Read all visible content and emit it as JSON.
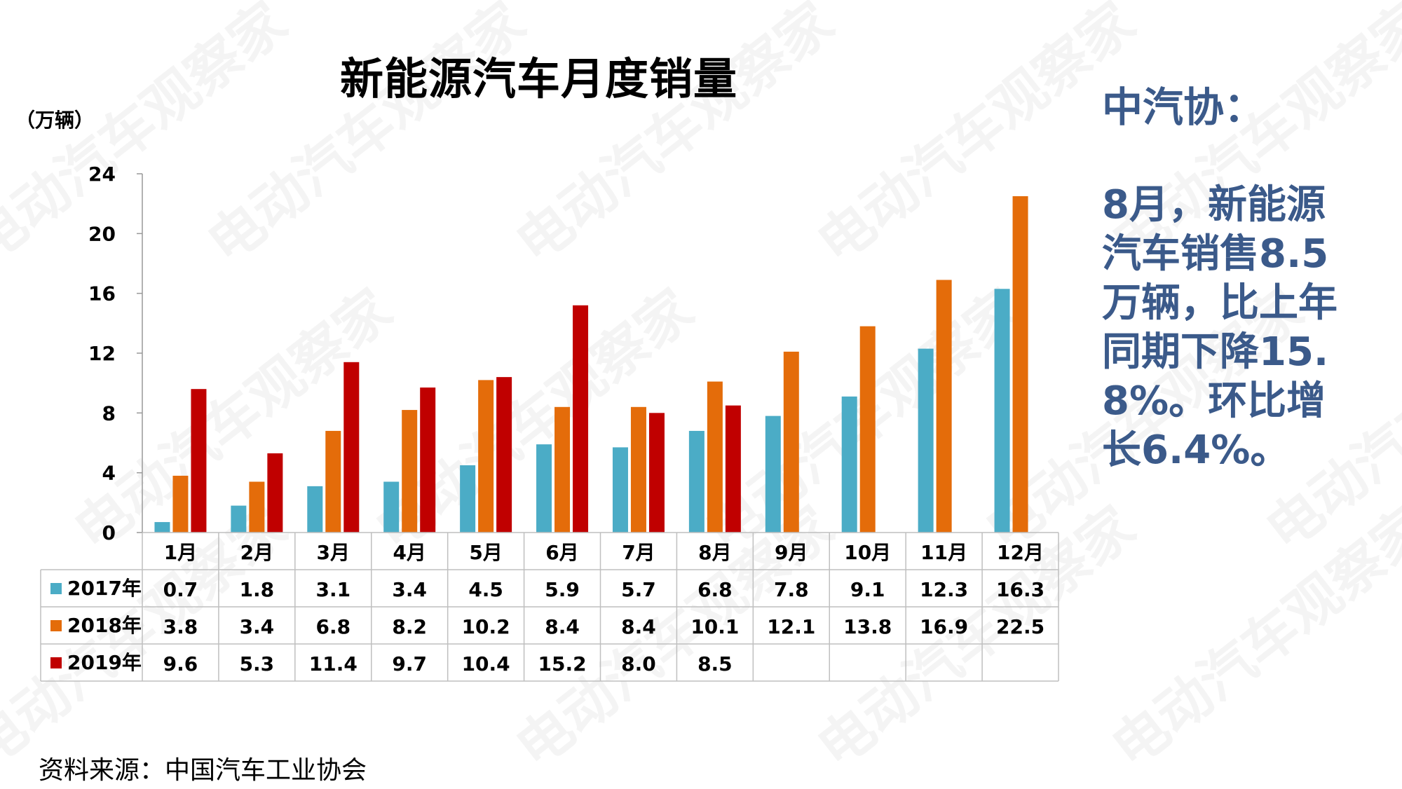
{
  "title": "新能源汽车月度销量",
  "unit_label": "（万辆）",
  "side_panel": {
    "heading": "中汽协：",
    "body": "8月，新能源汽车销售8.5万辆，比上年同期下降15.8%。环比增长6.4%。"
  },
  "source": "资料来源：中国汽车工业协会",
  "watermark": "电动汽车观察家",
  "chart_data": {
    "type": "bar",
    "title": "新能源汽车月度销量",
    "ylabel": "（万辆）",
    "ylim": [
      0,
      24
    ],
    "yticks": [
      0,
      4,
      8,
      12,
      16,
      20,
      24
    ],
    "categories": [
      "1月",
      "2月",
      "3月",
      "4月",
      "5月",
      "6月",
      "7月",
      "8月",
      "9月",
      "10月",
      "11月",
      "12月"
    ],
    "series": [
      {
        "name": "2017年",
        "color": "#4bacc6",
        "values": [
          0.7,
          1.8,
          3.1,
          3.4,
          4.5,
          5.9,
          5.7,
          6.8,
          7.8,
          9.1,
          12.3,
          16.3
        ],
        "labels": [
          "0.7",
          "1.8",
          "3.1",
          "3.4",
          "4.5",
          "5.9",
          "5.7",
          "6.8",
          "7.8",
          "9.1",
          "12.3",
          "16.3"
        ]
      },
      {
        "name": "2018年",
        "color": "#e46c0a",
        "values": [
          3.8,
          3.4,
          6.8,
          8.2,
          10.2,
          8.4,
          8.4,
          10.1,
          12.1,
          13.8,
          16.9,
          22.5
        ],
        "labels": [
          "3.8",
          "3.4",
          "6.8",
          "8.2",
          "10.2",
          "8.4",
          "8.4",
          "10.1",
          "12.1",
          "13.8",
          "16.9",
          "22.5"
        ]
      },
      {
        "name": "2019年",
        "color": "#c00000",
        "values": [
          9.6,
          5.3,
          11.4,
          9.7,
          10.4,
          15.2,
          8.0,
          8.5,
          null,
          null,
          null,
          null
        ],
        "labels": [
          "9.6",
          "5.3",
          "11.4",
          "9.7",
          "10.4",
          "15.2",
          "8.0",
          "8.5",
          "",
          "",
          "",
          ""
        ]
      }
    ],
    "legend": "data-table"
  }
}
